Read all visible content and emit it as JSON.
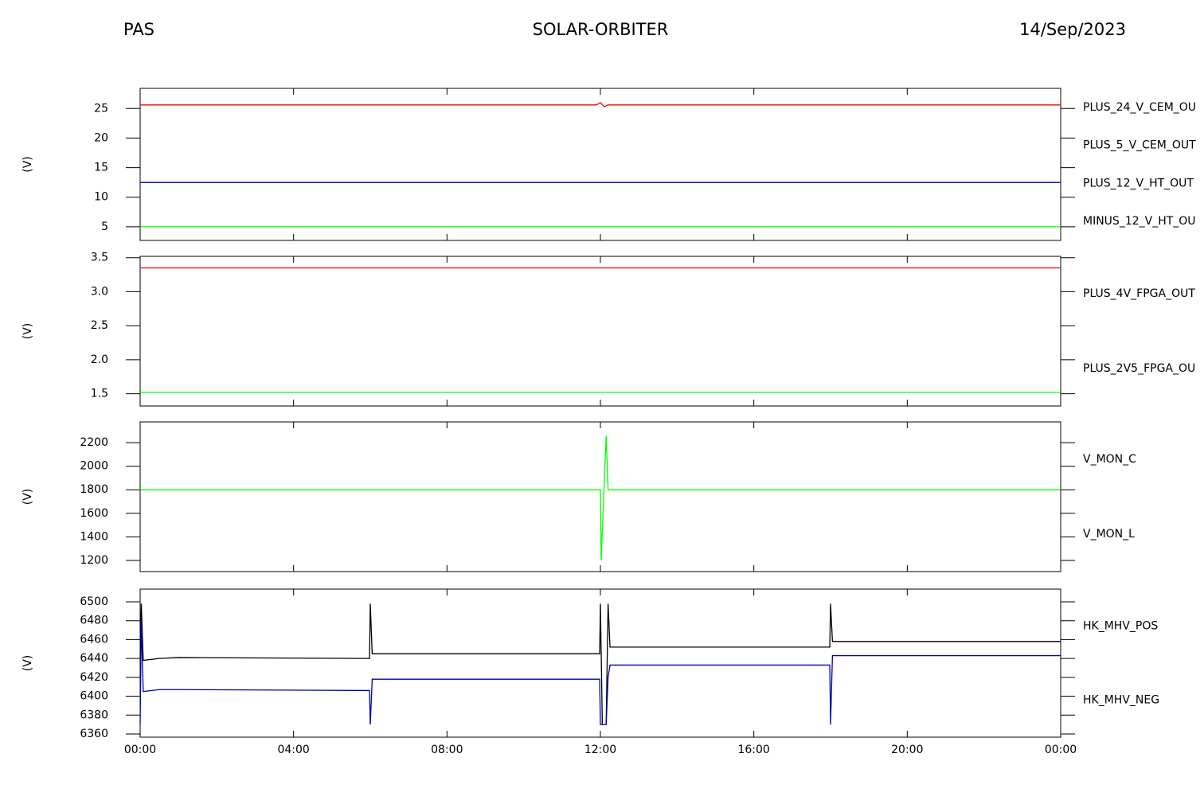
{
  "header": {
    "left": "PAS",
    "center": "SOLAR-ORBITER",
    "right": "14/Sep/2023"
  },
  "chart_data": [
    {
      "type": "line",
      "ylabel": "(V)",
      "xlim": [
        0,
        24
      ],
      "xticks": [
        0,
        4,
        8,
        12,
        16,
        20,
        24
      ],
      "ylim": [
        2.7,
        28.4
      ],
      "yticks": [
        5,
        10,
        15,
        20,
        25
      ],
      "x": [
        0,
        11.9,
        12.0,
        12.1,
        12.2,
        24
      ],
      "series": [
        {
          "name": "PLUS_24_V_CEM_OU",
          "color": "#ff0000",
          "values": [
            25.6,
            25.6,
            26.0,
            25.3,
            25.6,
            25.6
          ]
        },
        {
          "name": "PLUS_5_V_CEM_OUT",
          "color": "#00ff00",
          "values": [
            5.0,
            5.0,
            5.0,
            5.0,
            5.0,
            5.0
          ]
        },
        {
          "name": "PLUS_12_V_HT_OUT",
          "color": "#0000aa",
          "values": [
            12.5,
            12.5,
            12.5,
            12.5,
            12.5,
            12.5
          ]
        },
        {
          "name": "MINUS_12_V_HT_OU",
          "color": "#000000",
          "values": [
            null,
            null,
            null,
            null,
            null,
            null
          ]
        }
      ]
    },
    {
      "type": "line",
      "ylabel": "(V)",
      "xlim": [
        0,
        24
      ],
      "xticks": [
        0,
        4,
        8,
        12,
        16,
        20,
        24
      ],
      "ylim": [
        1.32,
        3.52
      ],
      "yticks": [
        1.5,
        {
          "value": 2,
          "label": "2.0"
        },
        2.5,
        {
          "value": 3,
          "label": "3.0"
        },
        3.5
      ],
      "x": [
        0,
        24
      ],
      "series": [
        {
          "name": "PLUS_4V_FPGA_OUT",
          "color": "#ff0000",
          "values": [
            3.35,
            3.35
          ]
        },
        {
          "name": "PLUS_2V5_FPGA_OU",
          "color": "#00ff00",
          "values": [
            1.52,
            1.52
          ]
        }
      ]
    },
    {
      "type": "line",
      "ylabel": "(V)",
      "xlim": [
        0,
        24
      ],
      "xticks": [
        0,
        4,
        8,
        12,
        16,
        20,
        24
      ],
      "ylim": [
        1105,
        2376
      ],
      "yticks": [
        1200,
        1400,
        1600,
        1800,
        2000,
        2200
      ],
      "x": [
        0,
        12.0,
        12.02,
        12.15,
        12.2,
        24
      ],
      "series": [
        {
          "name": "V_MON_C",
          "color": "#ff0000",
          "values": [
            null,
            null,
            null,
            null,
            null,
            null
          ]
        },
        {
          "name": "V_MON_L",
          "color": "#00ff00",
          "values": [
            1800,
            1800,
            1200,
            2260,
            1800,
            1800
          ]
        }
      ]
    },
    {
      "type": "line",
      "ylabel": "(V)",
      "xlim": [
        0,
        24
      ],
      "xticks": [
        {
          "value": 0,
          "label": "00:00"
        },
        {
          "value": 4,
          "label": "04:00"
        },
        {
          "value": 8,
          "label": "08:00"
        },
        {
          "value": 12,
          "label": "12:00"
        },
        {
          "value": 16,
          "label": "16:00"
        },
        {
          "value": 20,
          "label": "20:00"
        },
        {
          "value": 24,
          "label": "00:00"
        }
      ],
      "ylim": [
        6356.6,
        6513.5
      ],
      "yticks": [
        6360,
        6380,
        6400,
        6420,
        6440,
        6460,
        6480,
        6500
      ],
      "x": [
        0,
        0.03,
        0.08,
        0.5,
        1,
        5.98,
        6.0,
        6.05,
        6.1,
        11.98,
        12.0,
        12.05,
        12.15,
        12.2,
        12.25,
        17.98,
        18.0,
        18.05,
        18.1,
        24
      ],
      "series": [
        {
          "name": "HK_MHV_POS",
          "color": "#000000",
          "values": [
            6440,
            6498,
            6438,
            6440,
            6441,
            6440,
            6498,
            6445,
            6445,
            6445,
            6498,
            6370,
            6370,
            6498,
            6452,
            6452,
            6498,
            6458,
            6458,
            6458
          ]
        },
        {
          "name": "HK_MHV_NEG",
          "color": "#0000aa",
          "values": [
            6370,
            6480,
            6405,
            6407,
            6407,
            6406,
            6370,
            6418,
            6418,
            6418,
            6370,
            6370,
            6370,
            6420,
            6433,
            6433,
            6370,
            6443,
            6443,
            6443
          ]
        }
      ]
    }
  ]
}
